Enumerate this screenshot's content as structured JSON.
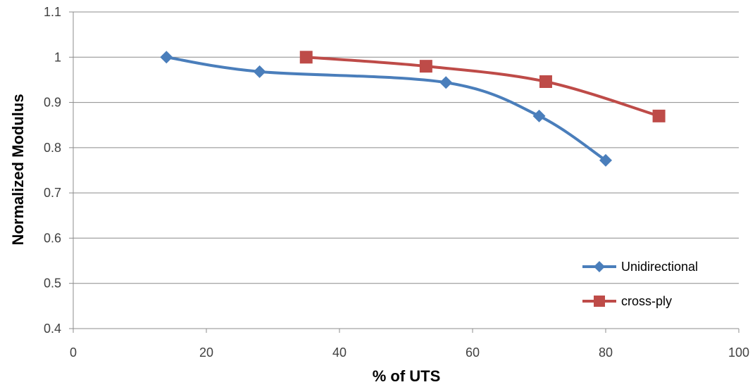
{
  "chart_data": {
    "type": "line",
    "title": "",
    "xlabel": "% of UTS",
    "ylabel": "Normalized Modulus",
    "xlim": [
      0,
      100
    ],
    "ylim": [
      0.4,
      1.1
    ],
    "xticks": [
      0,
      20,
      40,
      60,
      80,
      100
    ],
    "yticks": [
      0.4,
      0.5,
      0.6,
      0.7,
      0.8,
      0.9,
      1,
      1.1
    ],
    "grid": "horizontal",
    "legend_position": "bottom-right",
    "smoothed": true,
    "series": [
      {
        "name": "Unidirectional",
        "color": "#4a7ebb",
        "marker": "diamond",
        "x": [
          14,
          28,
          56,
          70,
          80
        ],
        "y": [
          1.0,
          0.968,
          0.944,
          0.87,
          0.772
        ]
      },
      {
        "name": "cross-ply",
        "color": "#be4b48",
        "marker": "square",
        "x": [
          35,
          53,
          71,
          88
        ],
        "y": [
          1.0,
          0.98,
          0.946,
          0.87
        ]
      }
    ]
  }
}
